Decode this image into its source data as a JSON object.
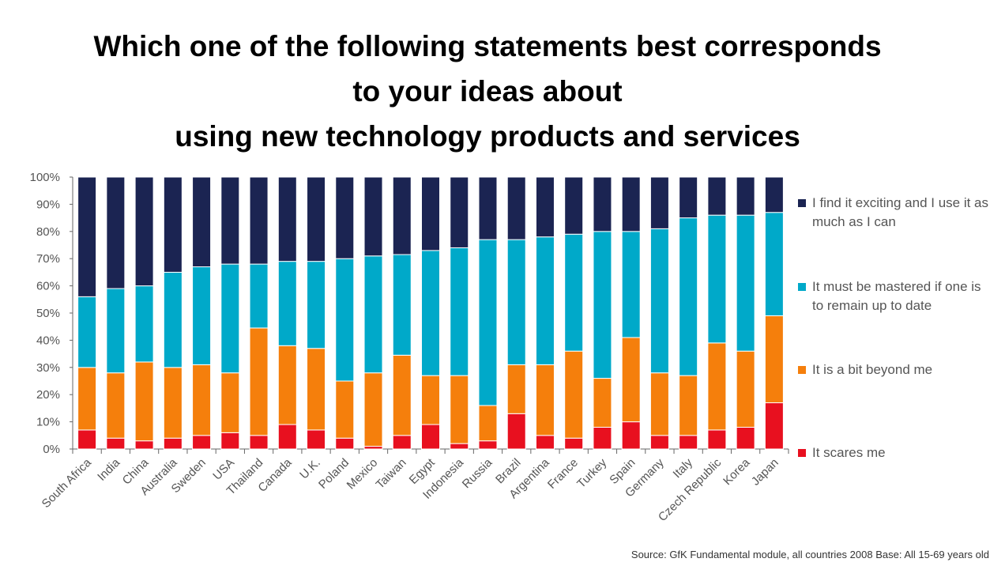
{
  "title_lines": [
    "Which one of the following statements best corresponds",
    "to your ideas about",
    "using new technology products and services"
  ],
  "source": "Source: GfK Fundamental module, all countries 2008 Base: All 15-69 years old",
  "chart_data": {
    "type": "bar",
    "stacked": true,
    "title": "Which one of the following statements best corresponds to your ideas about using new technology products and services",
    "ylim": [
      0,
      100
    ],
    "yticks": [
      "0%",
      "10%",
      "20%",
      "30%",
      "40%",
      "50%",
      "60%",
      "70%",
      "80%",
      "90%",
      "100%"
    ],
    "grid": false,
    "legend_position": "right",
    "categories": [
      "South Africa",
      "India",
      "China",
      "Australia",
      "Sweden",
      "USA",
      "Thailand",
      "Canada",
      "U.K.",
      "Poland",
      "Mexico",
      "Taiwan",
      "Egypt",
      "Indonesia",
      "Russia",
      "Brazil",
      "Argentina",
      "France",
      "Turkey",
      "Spain",
      "Germany",
      "Italy",
      "Czech Republic",
      "Korea",
      "Japan"
    ],
    "series": [
      {
        "name": "It scares me",
        "color": "#e8101f",
        "values": [
          7,
          4,
          3,
          4,
          5,
          6,
          5,
          9,
          7,
          4,
          1,
          5,
          9,
          2,
          3,
          13,
          5,
          4,
          8,
          10,
          5,
          5,
          7,
          8,
          17
        ]
      },
      {
        "name": "It is a bit beyond me",
        "color": "#f57f0c",
        "values": [
          23,
          24,
          29,
          26,
          26,
          22,
          39.5,
          29,
          30,
          21,
          27,
          29.5,
          18,
          25,
          13,
          18,
          26,
          32,
          18,
          31,
          23,
          22,
          32,
          28,
          32
        ]
      },
      {
        "name": "It must be mastered if one is to remain up to date",
        "color": "#00a9c9",
        "values": [
          26,
          31,
          28,
          35,
          36,
          40,
          23.5,
          31,
          32,
          45,
          43,
          37,
          46,
          47,
          61,
          46,
          47,
          43,
          54,
          39,
          53,
          58,
          47,
          50,
          38
        ]
      },
      {
        "name": "I find it exciting and I use it as much as I can",
        "color": "#1b2452",
        "values": [
          44,
          41,
          40,
          35,
          33,
          32,
          32,
          31,
          31,
          30,
          29,
          28.5,
          27,
          26,
          23,
          23,
          22,
          21,
          20,
          20,
          19,
          15,
          14,
          14,
          13
        ]
      }
    ]
  }
}
